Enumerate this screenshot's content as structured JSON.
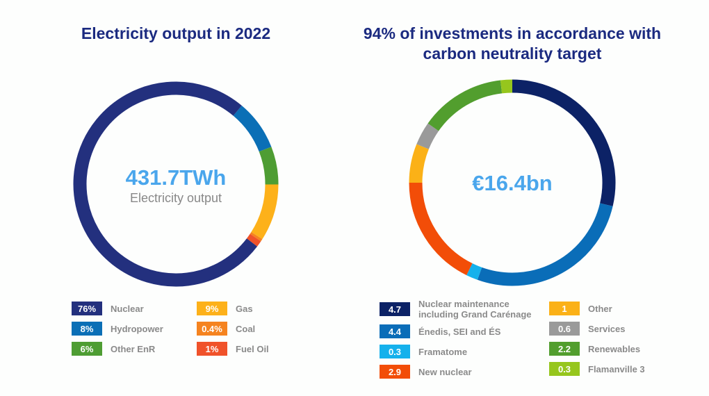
{
  "chart_data": [
    {
      "type": "pie",
      "title": "Electricity output in 2022",
      "center_value": "431.7TWh",
      "center_label": "Electricity output",
      "unit": "%",
      "slices": [
        {
          "label": "Nuclear",
          "display": "76%",
          "value": 76,
          "color": "#23307e"
        },
        {
          "label": "Hydropower",
          "display": "8%",
          "value": 8,
          "color": "#0b6fb6"
        },
        {
          "label": "Other EnR",
          "display": "6%",
          "value": 6,
          "color": "#4e9d33"
        },
        {
          "label": "Gas",
          "display": "9%",
          "value": 9,
          "color": "#fdb11a"
        },
        {
          "label": "Coal",
          "display": "0.4%",
          "value": 0.4,
          "color": "#f5831f"
        },
        {
          "label": "Fuel Oil",
          "display": "1%",
          "value": 1,
          "color": "#f0522a"
        }
      ]
    },
    {
      "type": "pie",
      "title": "94% of investments in accordance with carbon neutrality target",
      "center_value": "€16.4bn",
      "unit": "€bn",
      "slices": [
        {
          "label": "Nuclear maintenance including Grand Carénage",
          "display": "4.7",
          "value": 4.7,
          "color": "#0c2266"
        },
        {
          "label": "Énedis, SEI and ÉS",
          "display": "4.4",
          "value": 4.4,
          "color": "#0a6db8"
        },
        {
          "label": "Framatome",
          "display": "0.3",
          "value": 0.3,
          "color": "#15b1ec"
        },
        {
          "label": "New nuclear",
          "display": "2.9",
          "value": 2.9,
          "color": "#f24d08"
        },
        {
          "label": "Other",
          "display": "1",
          "value": 1,
          "color": "#fbb117"
        },
        {
          "label": "Services",
          "display": "0.6",
          "value": 0.6,
          "color": "#9a9a9a"
        },
        {
          "label": "Renewables",
          "display": "2.2",
          "value": 2.2,
          "color": "#529e2e"
        },
        {
          "label": "Flamanville 3",
          "display": "0.3",
          "value": 0.3,
          "color": "#96c61d"
        }
      ]
    }
  ]
}
